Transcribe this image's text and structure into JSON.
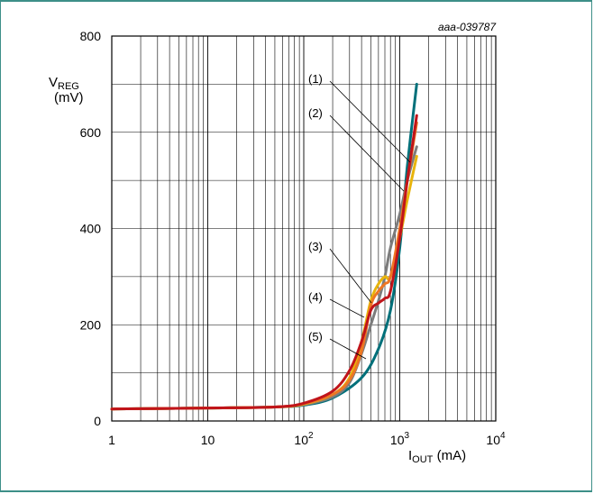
{
  "figure_code": "aaa-039787",
  "chart_data": {
    "type": "line",
    "x_scale": "log",
    "xlim": [
      1,
      10000
    ],
    "ylim": [
      0,
      800
    ],
    "ylabel": {
      "main": "V",
      "sub": "REG",
      "unit": "(mV)"
    },
    "xlabel": {
      "main": "I",
      "sub": "OUT",
      "unit": " (mA)"
    },
    "y_ticks": [
      "0",
      "200",
      "400",
      "600",
      "800"
    ],
    "x_ticks": [
      {
        "base": "1",
        "exp": ""
      },
      {
        "base": "10",
        "exp": ""
      },
      {
        "base": "10",
        "exp": "2"
      },
      {
        "base": "10",
        "exp": "3"
      },
      {
        "base": "10",
        "exp": "4"
      }
    ],
    "grid": true,
    "series": [
      {
        "name": "(1)",
        "color": "#00707a",
        "points": [
          [
            1,
            25
          ],
          [
            10,
            27
          ],
          [
            50,
            29
          ],
          [
            100,
            33
          ],
          [
            200,
            48
          ],
          [
            400,
            90
          ],
          [
            600,
            150
          ],
          [
            800,
            230
          ],
          [
            1000,
            360
          ],
          [
            1200,
            530
          ],
          [
            1500,
            700
          ]
        ]
      },
      {
        "name": "(2)",
        "color": "#ee7623",
        "points": [
          [
            1,
            25
          ],
          [
            10,
            27
          ],
          [
            50,
            29
          ],
          [
            100,
            36
          ],
          [
            200,
            55
          ],
          [
            300,
            85
          ],
          [
            400,
            145
          ],
          [
            500,
            240
          ],
          [
            600,
            270
          ],
          [
            700,
            285
          ],
          [
            800,
            300
          ],
          [
            1000,
            400
          ],
          [
            1200,
            500
          ],
          [
            1500,
            620
          ]
        ]
      },
      {
        "name": "(3)",
        "color": "#e8b40c",
        "points": [
          [
            1,
            25
          ],
          [
            10,
            27
          ],
          [
            50,
            29
          ],
          [
            100,
            35
          ],
          [
            200,
            55
          ],
          [
            300,
            90
          ],
          [
            400,
            165
          ],
          [
            500,
            250
          ],
          [
            600,
            285
          ],
          [
            700,
            300
          ],
          [
            800,
            300
          ],
          [
            1000,
            380
          ],
          [
            1200,
            460
          ],
          [
            1500,
            550
          ]
        ]
      },
      {
        "name": "(4)",
        "color": "#7c7c7c",
        "points": [
          [
            1,
            25
          ],
          [
            10,
            27
          ],
          [
            50,
            29
          ],
          [
            100,
            34
          ],
          [
            200,
            50
          ],
          [
            300,
            80
          ],
          [
            400,
            140
          ],
          [
            500,
            200
          ],
          [
            600,
            250
          ],
          [
            700,
            300
          ],
          [
            800,
            360
          ],
          [
            1000,
            430
          ],
          [
            1200,
            500
          ],
          [
            1500,
            570
          ]
        ]
      },
      {
        "name": "(5)",
        "color": "#c0141a",
        "points": [
          [
            1,
            25
          ],
          [
            10,
            27
          ],
          [
            50,
            29
          ],
          [
            100,
            37
          ],
          [
            200,
            62
          ],
          [
            300,
            105
          ],
          [
            400,
            165
          ],
          [
            500,
            230
          ],
          [
            600,
            245
          ],
          [
            700,
            255
          ],
          [
            800,
            270
          ],
          [
            1000,
            380
          ],
          [
            1200,
            500
          ],
          [
            1500,
            635
          ]
        ]
      }
    ]
  }
}
